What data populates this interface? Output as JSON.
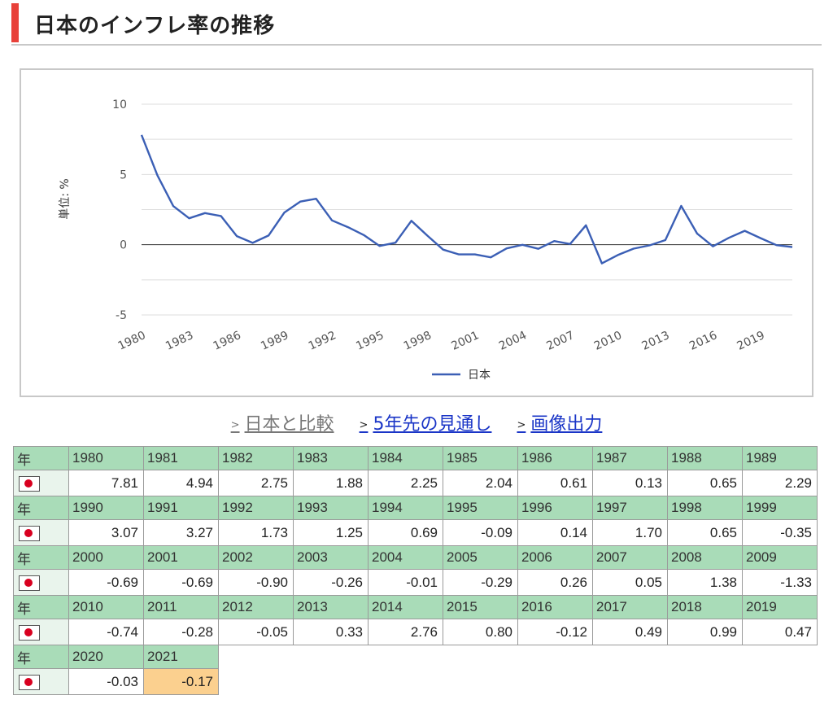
{
  "page": {
    "title": "日本のインフレ率の推移"
  },
  "links": {
    "compare": "日本と比較",
    "outlook": "5年先の見通し",
    "image_output": "画像出力"
  },
  "table": {
    "year_label": "年",
    "flag_icon": "japan-flag-icon",
    "highlight_color": "#fbd08f",
    "header_color": "#a9dcb8",
    "rows": [
      {
        "years": [
          "1980",
          "1981",
          "1982",
          "1983",
          "1984",
          "1985",
          "1986",
          "1987",
          "1988",
          "1989"
        ],
        "values": [
          "7.81",
          "4.94",
          "2.75",
          "1.88",
          "2.25",
          "2.04",
          "0.61",
          "0.13",
          "0.65",
          "2.29"
        ]
      },
      {
        "years": [
          "1990",
          "1991",
          "1992",
          "1993",
          "1994",
          "1995",
          "1996",
          "1997",
          "1998",
          "1999"
        ],
        "values": [
          "3.07",
          "3.27",
          "1.73",
          "1.25",
          "0.69",
          "-0.09",
          "0.14",
          "1.70",
          "0.65",
          "-0.35"
        ]
      },
      {
        "years": [
          "2000",
          "2001",
          "2002",
          "2003",
          "2004",
          "2005",
          "2006",
          "2007",
          "2008",
          "2009"
        ],
        "values": [
          "-0.69",
          "-0.69",
          "-0.90",
          "-0.26",
          "-0.01",
          "-0.29",
          "0.26",
          "0.05",
          "1.38",
          "-1.33"
        ]
      },
      {
        "years": [
          "2010",
          "2011",
          "2012",
          "2013",
          "2014",
          "2015",
          "2016",
          "2017",
          "2018",
          "2019"
        ],
        "values": [
          "-0.74",
          "-0.28",
          "-0.05",
          "0.33",
          "2.76",
          "0.80",
          "-0.12",
          "0.49",
          "0.99",
          "0.47"
        ]
      },
      {
        "years": [
          "2020",
          "2021"
        ],
        "values": [
          "-0.03",
          "-0.17"
        ]
      }
    ]
  },
  "chart_data": {
    "type": "line",
    "title": "",
    "xlabel": "",
    "ylabel": "単位: %",
    "ylim": [
      -5,
      10
    ],
    "yticks": [
      "10",
      "5",
      "0",
      "-5"
    ],
    "xtick_labels": [
      "1980",
      "1983",
      "1986",
      "1989",
      "1992",
      "1995",
      "1998",
      "2001",
      "2004",
      "2007",
      "2010",
      "2013",
      "2016",
      "2019"
    ],
    "grid": true,
    "legend": "bottom-center",
    "line_color": "#3b5fb5",
    "x": [
      1980,
      1981,
      1982,
      1983,
      1984,
      1985,
      1986,
      1987,
      1988,
      1989,
      1990,
      1991,
      1992,
      1993,
      1994,
      1995,
      1996,
      1997,
      1998,
      1999,
      2000,
      2001,
      2002,
      2003,
      2004,
      2005,
      2006,
      2007,
      2008,
      2009,
      2010,
      2011,
      2012,
      2013,
      2014,
      2015,
      2016,
      2017,
      2018,
      2019,
      2020,
      2021
    ],
    "series": [
      {
        "name": "日本",
        "values": [
          7.81,
          4.94,
          2.75,
          1.88,
          2.25,
          2.04,
          0.61,
          0.13,
          0.65,
          2.29,
          3.07,
          3.27,
          1.73,
          1.25,
          0.69,
          -0.09,
          0.14,
          1.7,
          0.65,
          -0.35,
          -0.69,
          -0.69,
          -0.9,
          -0.26,
          -0.01,
          -0.29,
          0.26,
          0.05,
          1.38,
          -1.33,
          -0.74,
          -0.28,
          -0.05,
          0.33,
          2.76,
          0.8,
          -0.12,
          0.49,
          0.99,
          0.47,
          -0.03,
          -0.17
        ]
      }
    ]
  }
}
